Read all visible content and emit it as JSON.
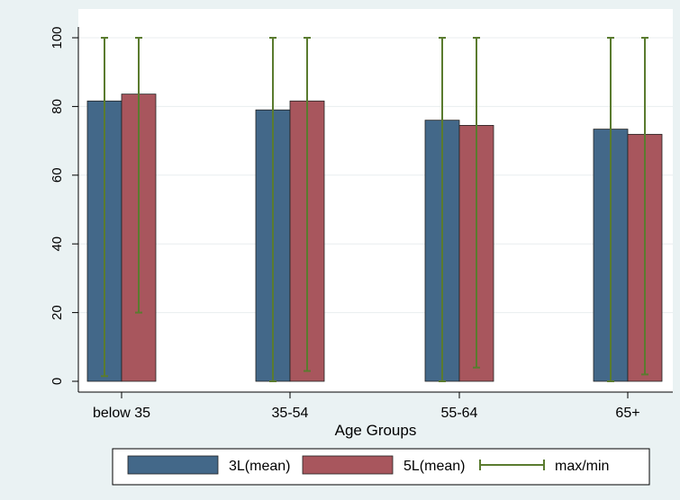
{
  "chart_data": {
    "type": "bar",
    "categories": [
      "below 35",
      "35-54",
      "55-64",
      "65+"
    ],
    "series": [
      {
        "name": "3L(mean)",
        "values": [
          81.6,
          79.0,
          76.0,
          73.4
        ],
        "max": [
          100,
          100,
          100,
          100
        ],
        "min": [
          1.5,
          0,
          0,
          0
        ]
      },
      {
        "name": "5L(mean)",
        "values": [
          83.6,
          81.6,
          74.5,
          71.9
        ],
        "max": [
          100,
          100,
          100,
          100
        ],
        "min": [
          20,
          3,
          4,
          2
        ]
      }
    ],
    "range_legend": "max/min",
    "xlabel": "Age Groups",
    "ylabel": "",
    "ylim": [
      0,
      100
    ],
    "yticks": [
      0,
      20,
      40,
      60,
      80,
      100
    ],
    "grid": true,
    "legend_position": "bottom",
    "colors": {
      "series": [
        "#436889",
        "#a8565d"
      ],
      "range": "#5a7b2f",
      "plot_background": "#ffffff",
      "page_background": "#eaf2f3",
      "grid": "#e8eeef"
    }
  }
}
